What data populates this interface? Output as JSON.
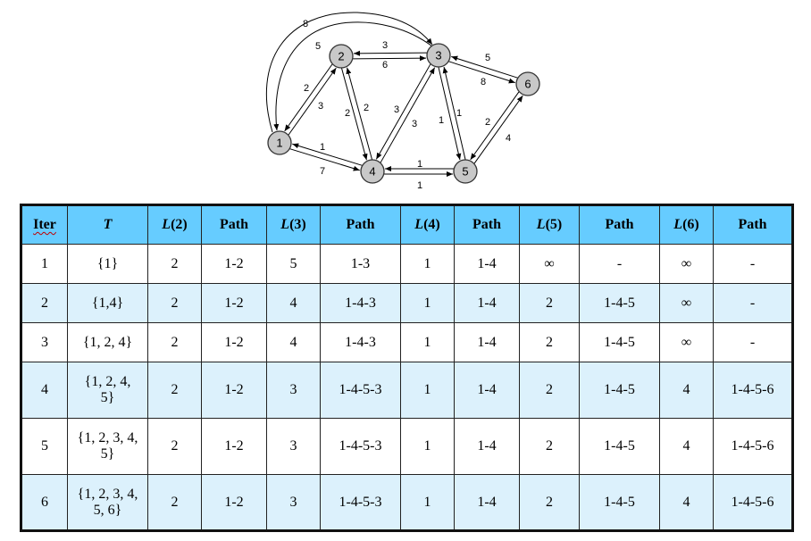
{
  "graph": {
    "nodes": [
      "1",
      "2",
      "3",
      "4",
      "5",
      "6"
    ],
    "edge_labels": {
      "e13_outer": "8",
      "e13_inner": "5",
      "e23_top": "3",
      "e32_bottom": "6",
      "e12_a": "2",
      "e12_b": "3",
      "e24_a": "2",
      "e24_b": "2",
      "e34_a": "3",
      "e34_b": "3",
      "e35_a": "1",
      "e35_b": "1",
      "e36_a": "5",
      "e36_b": "8",
      "e14_a": "1",
      "e14_b": "7",
      "e45_a": "1",
      "e45_b": "1",
      "e56_a": "2",
      "e56_b": "4"
    }
  },
  "table": {
    "headers": [
      "Iter",
      "T",
      "L(2)",
      "Path",
      "L(3)",
      "Path",
      "L(4)",
      "Path",
      "L(5)",
      "Path",
      "L(6)",
      "Path"
    ],
    "rows": [
      [
        "1",
        "{1}",
        "2",
        "1-2",
        "5",
        "1-3",
        "1",
        "1-4",
        "∞",
        "-",
        "∞",
        "-"
      ],
      [
        "2",
        "{1,4}",
        "2",
        "1-2",
        "4",
        "1-4-3",
        "1",
        "1-4",
        "2",
        "1-4-5",
        "∞",
        "-"
      ],
      [
        "3",
        "{1, 2, 4}",
        "2",
        "1-2",
        "4",
        "1-4-3",
        "1",
        "1-4",
        "2",
        "1-4-5",
        "∞",
        "-"
      ],
      [
        "4",
        "{1, 2, 4, 5}",
        "2",
        "1-2",
        "3",
        "1-4-5-3",
        "1",
        "1-4",
        "2",
        "1-4-5",
        "4",
        "1-4-5-6"
      ],
      [
        "5",
        "{1, 2, 3, 4, 5}",
        "2",
        "1-2",
        "3",
        "1-4-5-3",
        "1",
        "1-4",
        "2",
        "1-4-5",
        "4",
        "1-4-5-6"
      ],
      [
        "6",
        "{1, 2, 3, 4, 5, 6}",
        "2",
        "1-2",
        "3",
        "1-4-5-3",
        "1",
        "1-4",
        "2",
        "1-4-5",
        "4",
        "1-4-5-6"
      ]
    ]
  }
}
